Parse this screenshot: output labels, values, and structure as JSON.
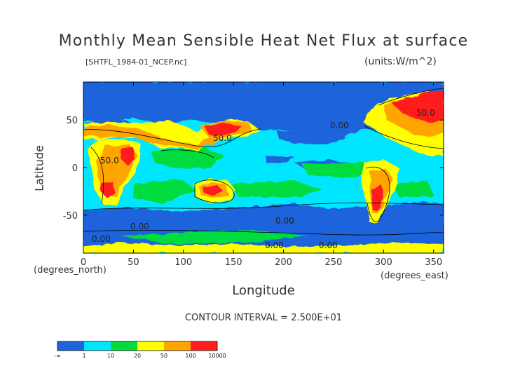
{
  "header": {
    "title": "Monthly Mean Sensible Heat Net Flux at surface",
    "file_label": "[SHTFL_1984-01_NCEP.nc]",
    "units_label": "(units:W/m^2)"
  },
  "axes": {
    "ylabel": "Latitude",
    "xlabel": "Longitude",
    "y_unit_label": "(degrees_north)",
    "x_unit_label": "(degrees_east)"
  },
  "footer": {
    "contour_interval": "CONTOUR INTERVAL = 2.500E+01"
  },
  "colors": {
    "blue": "#1e64dc",
    "cyan": "#00e6ff",
    "green": "#00dc3c",
    "yellow": "#ffff00",
    "orange": "#ffa500",
    "red": "#ff1e1e",
    "contour": "#000000"
  },
  "chart_data": {
    "type": "heatmap",
    "title": "Monthly Mean Sensible Heat Net Flux at surface",
    "xlabel": "Longitude",
    "ylabel": "Latitude",
    "xlim": [
      0,
      360
    ],
    "ylim": [
      -90,
      90
    ],
    "x_ticks": [
      0,
      50,
      100,
      150,
      200,
      250,
      300,
      350
    ],
    "x_tick_labels": [
      "0",
      "50",
      "100",
      "150",
      "200",
      "250",
      "300",
      "350"
    ],
    "y_ticks": [
      50,
      0,
      -50
    ],
    "y_tick_labels": [
      "50",
      "0",
      "-50"
    ],
    "contour_labels": [
      "50.0",
      "50.0",
      "50.0",
      "0.00",
      "0.00",
      "0.00",
      "0.00",
      "0.00",
      "0.00"
    ],
    "colorbar": {
      "bins": [
        {
          "color": "#1e64dc",
          "label": "-∞"
        },
        {
          "color": "#00e6ff",
          "label": "1"
        },
        {
          "color": "#00dc3c",
          "label": "10"
        },
        {
          "color": "#ffff00",
          "label": "20"
        },
        {
          "color": "#ffa500",
          "label": "50"
        },
        {
          "color": "#ff1e1e",
          "label": "100"
        }
      ],
      "end_label": "10000"
    }
  }
}
